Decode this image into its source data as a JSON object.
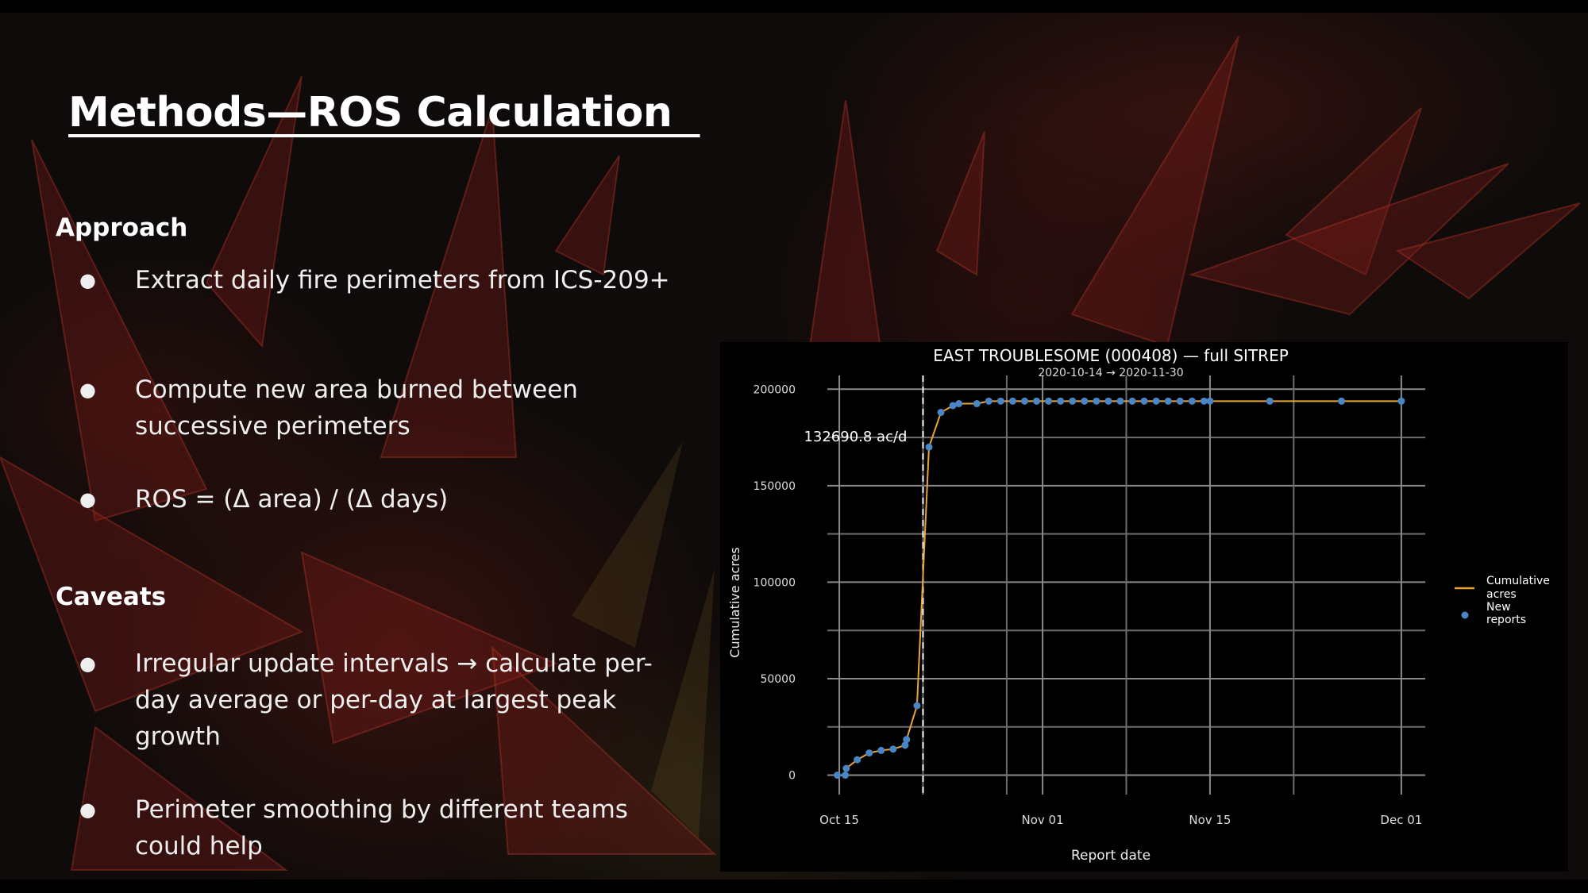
{
  "slide": {
    "title": "Methods—ROS Calculation  ",
    "approach_heading": "Approach",
    "approach_bullets": [
      "Extract daily fire perimeters from ICS-209+",
      "Compute new area burned between successive perimeters",
      "ROS = (Δ area) / (Δ days)"
    ],
    "caveats_heading": "Caveats",
    "caveat_bullets": [
      "Irregular update intervals → calculate per-day average or per-day at largest peak growth",
      "Perimeter smoothing by different teams could help"
    ],
    "bullet_symbol": "●"
  },
  "chart_data": {
    "type": "line",
    "title": "EAST TROUBLESOME (000408) — full SITREP",
    "subtitle": "2020-10-14 → 2020-11-30",
    "xlabel": "Report date",
    "ylabel": "Cumulative acres",
    "x_ticks": [
      "Oct 15",
      "Nov 01",
      "Nov 15",
      "Dec 01"
    ],
    "y_ticks": [
      0,
      50000,
      100000,
      150000,
      200000
    ],
    "xlim": [
      "2020-10-14",
      "2020-12-03"
    ],
    "ylim": [
      -8000,
      203000
    ],
    "grid": true,
    "legend_position": "right",
    "annotation": "132690.8 ac/d",
    "marker_date": "2020-10-22",
    "series": [
      {
        "name": "Cumulative acres",
        "kind": "line",
        "color": "#e8a33d"
      },
      {
        "name": "New reports",
        "kind": "points",
        "color": "#4a86c5"
      }
    ],
    "points": [
      {
        "x": "2020-10-14T20:00",
        "y": 0
      },
      {
        "x": "2020-10-15T12:00",
        "y": 0
      },
      {
        "x": "2020-10-15T14:00",
        "y": 3500
      },
      {
        "x": "2020-10-16T12:00",
        "y": 8000
      },
      {
        "x": "2020-10-17T12:00",
        "y": 11500
      },
      {
        "x": "2020-10-18T12:00",
        "y": 12800
      },
      {
        "x": "2020-10-19T12:00",
        "y": 13500
      },
      {
        "x": "2020-10-20T12:00",
        "y": 15500
      },
      {
        "x": "2020-10-20T15:00",
        "y": 18500
      },
      {
        "x": "2020-10-21T12:00",
        "y": 36000
      },
      {
        "x": "2020-10-22T12:00",
        "y": 170000
      },
      {
        "x": "2020-10-23T12:00",
        "y": 188000
      },
      {
        "x": "2020-10-24T12:00",
        "y": 191500
      },
      {
        "x": "2020-10-25T00:00",
        "y": 192500
      },
      {
        "x": "2020-10-26T12:00",
        "y": 192500
      },
      {
        "x": "2020-10-27T12:00",
        "y": 193800
      },
      {
        "x": "2020-10-28T12:00",
        "y": 193800
      },
      {
        "x": "2020-10-29T12:00",
        "y": 193800
      },
      {
        "x": "2020-10-30T12:00",
        "y": 193800
      },
      {
        "x": "2020-10-31T12:00",
        "y": 193800
      },
      {
        "x": "2020-11-01T12:00",
        "y": 193800
      },
      {
        "x": "2020-11-02T12:00",
        "y": 193800
      },
      {
        "x": "2020-11-03T12:00",
        "y": 193800
      },
      {
        "x": "2020-11-04T12:00",
        "y": 193800
      },
      {
        "x": "2020-11-05T12:00",
        "y": 193800
      },
      {
        "x": "2020-11-06T12:00",
        "y": 193800
      },
      {
        "x": "2020-11-07T12:00",
        "y": 193800
      },
      {
        "x": "2020-11-08T12:00",
        "y": 193800
      },
      {
        "x": "2020-11-09T12:00",
        "y": 193800
      },
      {
        "x": "2020-11-10T12:00",
        "y": 193800
      },
      {
        "x": "2020-11-11T12:00",
        "y": 193800
      },
      {
        "x": "2020-11-12T12:00",
        "y": 193800
      },
      {
        "x": "2020-11-13T12:00",
        "y": 193800
      },
      {
        "x": "2020-11-14T12:00",
        "y": 193800
      },
      {
        "x": "2020-11-15T00:00",
        "y": 193800
      },
      {
        "x": "2020-11-20T00:00",
        "y": 193800
      },
      {
        "x": "2020-11-26T00:00",
        "y": 193800
      },
      {
        "x": "2020-12-01T00:00",
        "y": 193800
      }
    ]
  }
}
